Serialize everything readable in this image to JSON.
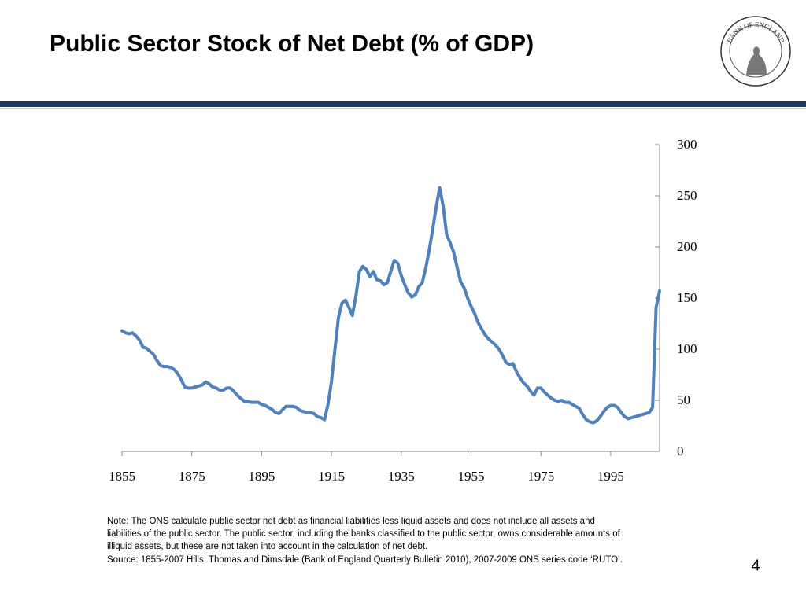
{
  "chart_data": {
    "type": "line",
    "title": "Public Sector Stock of Net Debt (% of GDP)",
    "logo_text": "BANK OF ENGLAND",
    "x": [
      1855,
      1856,
      1857,
      1858,
      1859,
      1860,
      1861,
      1862,
      1863,
      1864,
      1865,
      1866,
      1867,
      1868,
      1869,
      1870,
      1871,
      1872,
      1873,
      1874,
      1875,
      1876,
      1877,
      1878,
      1879,
      1880,
      1881,
      1882,
      1883,
      1884,
      1885,
      1886,
      1887,
      1888,
      1889,
      1890,
      1891,
      1892,
      1893,
      1894,
      1895,
      1896,
      1897,
      1898,
      1899,
      1900,
      1901,
      1902,
      1903,
      1904,
      1905,
      1906,
      1907,
      1908,
      1909,
      1910,
      1911,
      1912,
      1913,
      1914,
      1915,
      1916,
      1917,
      1918,
      1919,
      1920,
      1921,
      1922,
      1923,
      1924,
      1925,
      1926,
      1927,
      1928,
      1929,
      1930,
      1931,
      1932,
      1933,
      1934,
      1935,
      1936,
      1937,
      1938,
      1939,
      1940,
      1941,
      1942,
      1943,
      1944,
      1945,
      1946,
      1947,
      1948,
      1949,
      1950,
      1951,
      1952,
      1953,
      1954,
      1955,
      1956,
      1957,
      1958,
      1959,
      1960,
      1961,
      1962,
      1963,
      1964,
      1965,
      1966,
      1967,
      1968,
      1969,
      1970,
      1971,
      1972,
      1973,
      1974,
      1975,
      1976,
      1977,
      1978,
      1979,
      1980,
      1981,
      1982,
      1983,
      1984,
      1985,
      1986,
      1987,
      1988,
      1989,
      1990,
      1991,
      1992,
      1993,
      1994,
      1995,
      1996,
      1997,
      1998,
      1999,
      2000,
      2001,
      2002,
      2003,
      2004,
      2005,
      2006,
      2007,
      2008,
      2009
    ],
    "values": [
      118,
      116,
      115,
      116,
      113,
      109,
      102,
      101,
      98,
      95,
      89,
      84,
      83,
      83,
      82,
      80,
      76,
      70,
      63,
      62,
      62,
      63,
      64,
      65,
      68,
      66,
      63,
      62,
      60,
      60,
      62,
      62,
      59,
      55,
      52,
      49,
      49,
      48,
      48,
      48,
      46,
      45,
      43,
      41,
      38,
      37,
      41,
      44,
      44,
      44,
      43,
      40,
      39,
      38,
      38,
      37,
      34,
      33,
      31,
      46,
      68,
      100,
      131,
      145,
      148,
      141,
      133,
      152,
      176,
      181,
      178,
      171,
      176,
      168,
      167,
      163,
      165,
      176,
      187,
      184,
      172,
      163,
      155,
      151,
      153,
      161,
      165,
      179,
      197,
      217,
      239,
      258,
      240,
      212,
      204,
      195,
      180,
      166,
      160,
      150,
      142,
      135,
      126,
      120,
      114,
      110,
      107,
      104,
      100,
      94,
      87,
      85,
      86,
      78,
      72,
      67,
      64,
      59,
      55,
      62,
      62,
      58,
      55,
      52,
      50,
      49,
      50,
      48,
      48,
      46,
      44,
      42,
      36,
      31,
      29,
      28,
      30,
      34,
      39,
      43,
      45,
      45,
      43,
      38,
      34,
      32,
      33,
      34,
      35,
      36,
      37,
      38,
      43,
      141,
      157
    ],
    "color": "#4f81bd",
    "xlim": [
      1855,
      2009
    ],
    "xticks": [
      1855,
      1875,
      1895,
      1915,
      1935,
      1955,
      1975,
      1995
    ],
    "ylim": [
      0,
      300
    ],
    "yticks": [
      0,
      50,
      100,
      150,
      200,
      250,
      300
    ],
    "yaxis_side": "right",
    "grid": false,
    "note_lines": [
      "Note: The ONS calculate public sector net debt as financial liabilities less liquid assets and does not include all assets and",
      "liabilities of the public sector. The public sector, including the banks classified to the public sector, owns considerable amounts of",
      "illiquid assets, but these are not taken into account in the calculation of net debt."
    ],
    "source": "Source: 1855-2007 Hills, Thomas and Dimsdale (Bank of England Quarterly Bulletin 2010), 2007-2009 ONS series code ‘RUTO’.",
    "page_number": "4"
  }
}
